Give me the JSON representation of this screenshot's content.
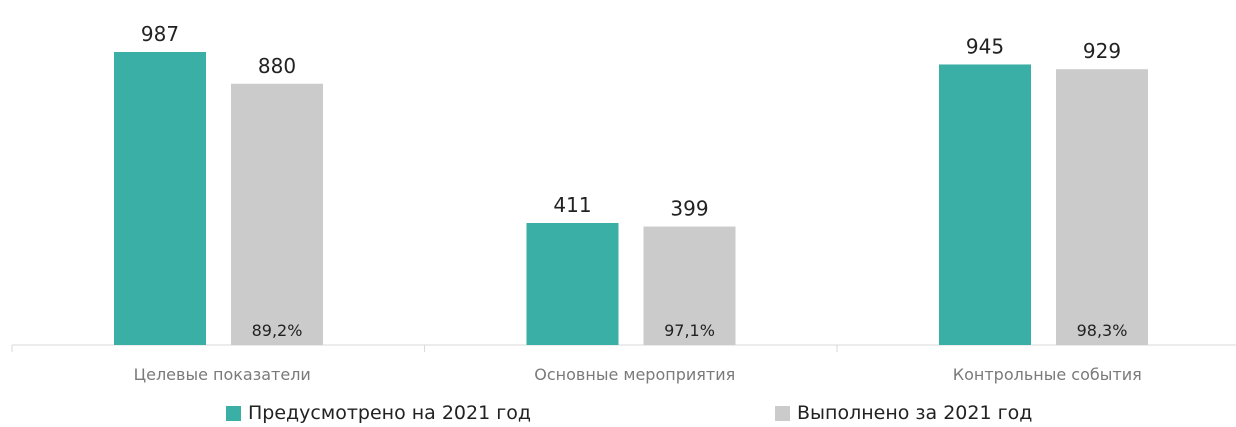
{
  "chart_data": {
    "type": "bar",
    "categories": [
      "Целевые показатели",
      "Основные мероприятия",
      "Контрольные события"
    ],
    "series": [
      {
        "name": "Предусмотрено на 2021 год",
        "values": [
          987,
          411,
          945
        ],
        "color": "#3aafa5"
      },
      {
        "name": "Выполнено за 2021 год",
        "values": [
          880,
          399,
          929
        ],
        "color": "#cbcbcb"
      }
    ],
    "percent_labels": [
      "89,2%",
      "97,1%",
      "98,3%"
    ],
    "ylim": [
      0,
      987
    ],
    "grid": false,
    "legend_position": "bottom"
  }
}
